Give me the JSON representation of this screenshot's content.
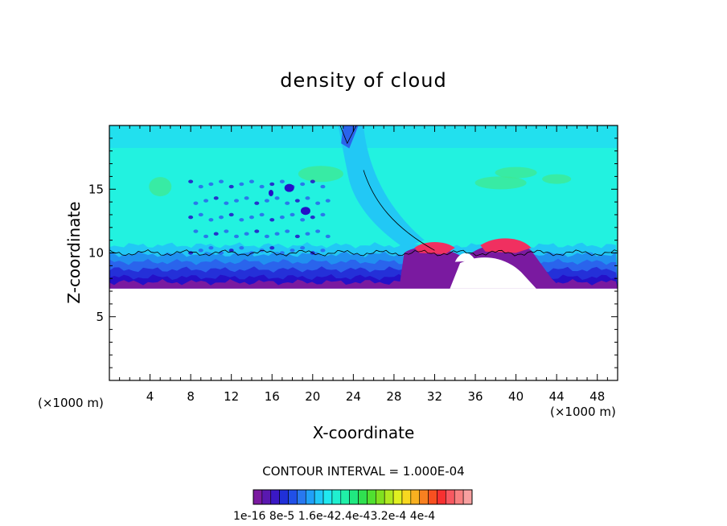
{
  "chart_data": {
    "type": "heatmap",
    "title": "density of cloud",
    "xlabel": "X-coordinate",
    "ylabel": "Z-coordinate",
    "x_unit": "(×1000 m)",
    "xlim": [
      0,
      50
    ],
    "ylim": [
      0,
      20
    ],
    "x_ticks": [
      4,
      8,
      12,
      16,
      20,
      24,
      28,
      32,
      36,
      40,
      44,
      48
    ],
    "y_ticks": [
      5,
      10,
      15
    ],
    "contour_interval_text": "CONTOUR INTERVAL = 1.000E-04",
    "colorbar": {
      "min": 1e-16,
      "max": 0.0004,
      "labels": [
        "1e-16",
        "8e-5",
        "1.6e-4",
        "2.4e-4",
        "3.2e-4",
        "4e-4"
      ],
      "colors": [
        "#7a1aa0",
        "#5a18b0",
        "#3a18c4",
        "#2030d8",
        "#2050e8",
        "#2878f0",
        "#20a0f8",
        "#20c8f8",
        "#20e8f0",
        "#20f0d0",
        "#20f0a8",
        "#20e880",
        "#30e050",
        "#50e030",
        "#80e020",
        "#b0e820",
        "#e0f020",
        "#f8d820",
        "#f8b020",
        "#f88020",
        "#f85020",
        "#f83030",
        "#f85860",
        "#f88080",
        "#f8a0a0"
      ]
    },
    "field": {
      "background_value_color": "#20f0e0",
      "cloud_base_z": 7.2,
      "upper_layer_z": 10
    },
    "colors": {
      "cyan": "#22f2e0",
      "sky": "#22c8f5",
      "blue": "#2a64ec",
      "navy": "#2410c8",
      "purple": "#7a1aa0",
      "green": "#40e890"
    }
  },
  "labels": {
    "title": "density of cloud",
    "xlabel": "X-coordinate",
    "ylabel": "Z-coordinate",
    "unit_left": "(×1000 m)",
    "unit_right": "(×1000 m)",
    "contour": "CONTOUR INTERVAL = 1.000E-04",
    "cb_text": "1e-16  8e-5 1.6e-42.4e-43.2e-4 4e-4"
  }
}
